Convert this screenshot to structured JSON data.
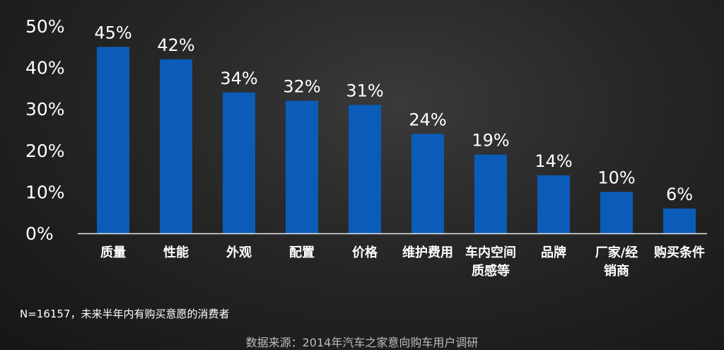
{
  "chart_data": {
    "type": "bar",
    "categories": [
      [
        "质量"
      ],
      [
        "性能"
      ],
      [
        "外观"
      ],
      [
        "配置"
      ],
      [
        "价格"
      ],
      [
        "维护费用"
      ],
      [
        "车内空间",
        "质感等"
      ],
      [
        "品牌"
      ],
      [
        "厂家/经",
        "销商"
      ],
      [
        "购买条件"
      ]
    ],
    "values": [
      45,
      42,
      34,
      32,
      31,
      24,
      19,
      14,
      10,
      6
    ],
    "value_labels": [
      "45%",
      "42%",
      "34%",
      "32%",
      "31%",
      "24%",
      "19%",
      "14%",
      "10%",
      "6%"
    ],
    "yticks": [
      "0%",
      "10%",
      "20%",
      "30%",
      "40%",
      "50%"
    ],
    "ylim": [
      0,
      50
    ],
    "grid": false,
    "legend": "none",
    "bar_color": "#0b5cb8"
  },
  "note": "N=16157，未来半年内有购买意愿的消费者",
  "source": "数据来源：2014年汽车之家意向购车用户调研"
}
